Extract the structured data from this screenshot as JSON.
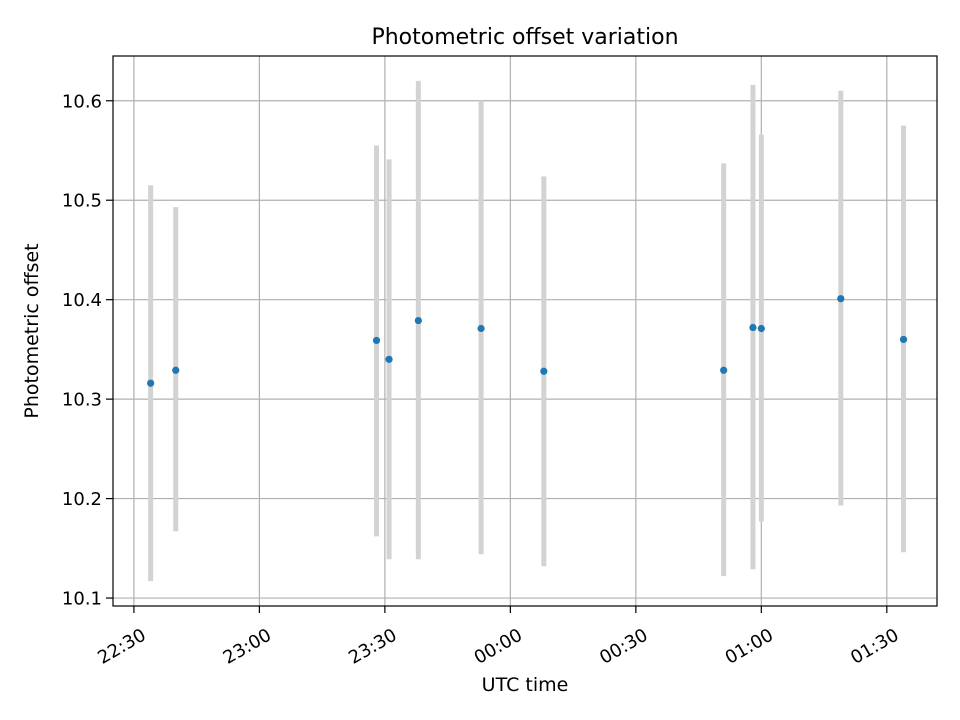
{
  "chart_data": {
    "type": "scatter",
    "title": "Photometric offset variation",
    "xlabel": "UTC time",
    "ylabel": "Photometric offset",
    "x_axis_kind": "time",
    "xlim": [
      "22:25",
      "01:42"
    ],
    "ylim": [
      10.092,
      10.645
    ],
    "grid": true,
    "x_ticks": [
      "22:30",
      "23:00",
      "23:30",
      "00:00",
      "00:30",
      "01:00",
      "01:30"
    ],
    "y_ticks": [
      10.1,
      10.2,
      10.3,
      10.4,
      10.5,
      10.6
    ],
    "y_tick_labels": [
      "10.1",
      "10.2",
      "10.3",
      "10.4",
      "10.5",
      "10.6"
    ],
    "series": [
      {
        "marker_color": "#1f77b4",
        "errorbar_color": "#d3d3d3",
        "points": [
          {
            "x": "22:34",
            "y": 10.316,
            "y_low": 10.117,
            "y_high": 10.515
          },
          {
            "x": "22:40",
            "y": 10.329,
            "y_low": 10.167,
            "y_high": 10.493
          },
          {
            "x": "23:28",
            "y": 10.359,
            "y_low": 10.162,
            "y_high": 10.555
          },
          {
            "x": "23:31",
            "y": 10.34,
            "y_low": 10.139,
            "y_high": 10.541
          },
          {
            "x": "23:38",
            "y": 10.379,
            "y_low": 10.139,
            "y_high": 10.62
          },
          {
            "x": "23:53",
            "y": 10.371,
            "y_low": 10.144,
            "y_high": 10.6
          },
          {
            "x": "00:08",
            "y": 10.328,
            "y_low": 10.132,
            "y_high": 10.524
          },
          {
            "x": "00:51",
            "y": 10.329,
            "y_low": 10.122,
            "y_high": 10.537
          },
          {
            "x": "00:58",
            "y": 10.372,
            "y_low": 10.129,
            "y_high": 10.616
          },
          {
            "x": "01:00",
            "y": 10.371,
            "y_low": 10.177,
            "y_high": 10.566
          },
          {
            "x": "01:19",
            "y": 10.401,
            "y_low": 10.193,
            "y_high": 10.61
          },
          {
            "x": "01:34",
            "y": 10.36,
            "y_low": 10.146,
            "y_high": 10.575
          }
        ]
      }
    ]
  }
}
